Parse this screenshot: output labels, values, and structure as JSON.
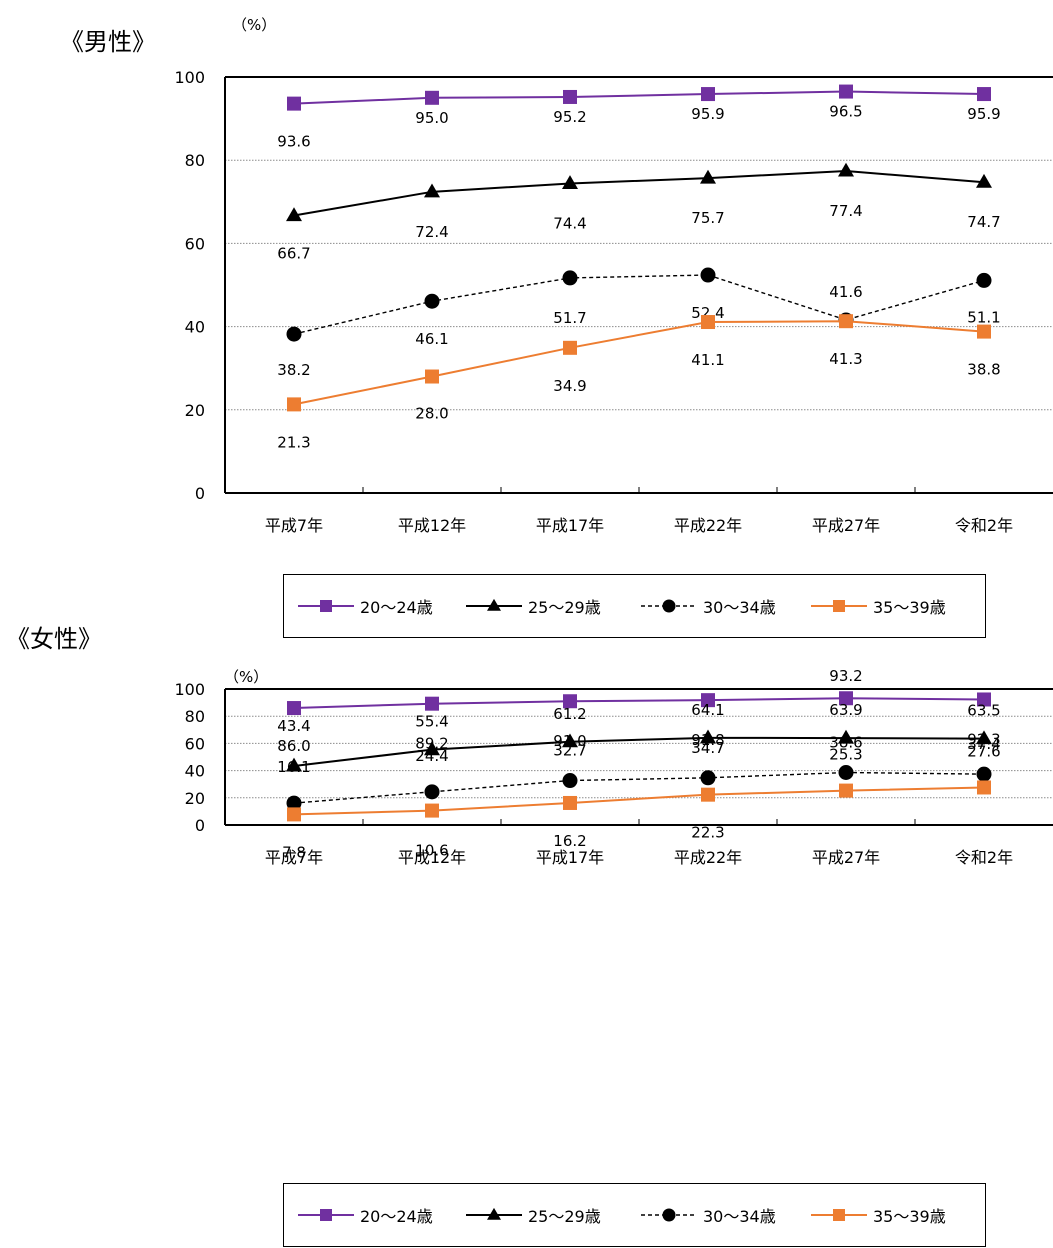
{
  "chart_data": [
    {
      "type": "line",
      "title": "《男性》",
      "unit": "（%）",
      "categories": [
        "平成7年",
        "平成12年",
        "平成17年",
        "平成22年",
        "平成27年",
        "令和2年"
      ],
      "ylim": [
        0,
        100
      ],
      "yticks": [
        "0",
        "20",
        "40",
        "60",
        "80",
        "100"
      ],
      "grid": true,
      "legend_position": "bottom",
      "series": [
        {
          "name": "20～24歳",
          "values": [
            93.6,
            95.0,
            95.2,
            95.9,
            96.5,
            95.9
          ],
          "labels": [
            "93.6",
            "95.0",
            "95.2",
            "95.9",
            "96.5",
            "95.9"
          ],
          "color": "#7030A0",
          "marker": "square",
          "dash": "solid"
        },
        {
          "name": "25～29歳",
          "values": [
            66.7,
            72.4,
            74.4,
            75.7,
            77.4,
            74.7
          ],
          "labels": [
            "66.7",
            "72.4",
            "74.4",
            "75.7",
            "77.4",
            "74.7"
          ],
          "color": "#000000",
          "marker": "triangle",
          "dash": "solid"
        },
        {
          "name": "30～34歳",
          "values": [
            38.2,
            46.1,
            51.7,
            52.4,
            41.6,
            51.1
          ],
          "labels": [
            "38.2",
            "46.1",
            "51.7",
            "52.4",
            "41.6",
            "51.1"
          ],
          "color": "#000000",
          "marker": "circle",
          "dash": "dashed"
        },
        {
          "name": "35～39歳",
          "values": [
            21.3,
            28.0,
            34.9,
            41.1,
            41.3,
            38.8
          ],
          "labels": [
            "21.3",
            "28.0",
            "34.9",
            "41.1",
            "41.3",
            "38.8"
          ],
          "color": "#ED7D31",
          "marker": "square",
          "dash": "solid"
        }
      ]
    },
    {
      "type": "line",
      "title": "《女性》",
      "unit": "（%）",
      "categories": [
        "平成7年",
        "平成12年",
        "平成17年",
        "平成22年",
        "平成27年",
        "令和2年"
      ],
      "ylim": [
        0,
        100
      ],
      "yticks": [
        "0",
        "20",
        "40",
        "60",
        "80",
        "100"
      ],
      "grid": true,
      "legend_position": "bottom",
      "series": [
        {
          "name": "20～24歳",
          "values": [
            86.0,
            89.2,
            91.0,
            91.8,
            93.2,
            92.3
          ],
          "labels": [
            "86.0",
            "89.2",
            "91.0",
            "91.8",
            "93.2",
            "92.3"
          ],
          "color": "#7030A0",
          "marker": "square",
          "dash": "solid"
        },
        {
          "name": "25～29歳",
          "values": [
            43.4,
            55.4,
            61.2,
            64.1,
            63.9,
            63.5
          ],
          "labels": [
            "43.4",
            "55.4",
            "61.2",
            "64.1",
            "63.9",
            "63.5"
          ],
          "color": "#000000",
          "marker": "triangle",
          "dash": "solid"
        },
        {
          "name": "30～34歳",
          "values": [
            16.1,
            24.4,
            32.7,
            34.7,
            38.6,
            37.4
          ],
          "labels": [
            "16.1",
            "24.4",
            "32.7",
            "34.7",
            "38.6",
            "37.4"
          ],
          "color": "#000000",
          "marker": "circle",
          "dash": "dashed"
        },
        {
          "name": "35～39歳",
          "values": [
            7.8,
            10.6,
            16.2,
            22.3,
            25.3,
            27.6
          ],
          "labels": [
            "7.8",
            "10.6",
            "16.2",
            "22.3",
            "25.3",
            "27.6"
          ],
          "color": "#ED7D31",
          "marker": "square",
          "dash": "solid"
        }
      ]
    }
  ]
}
